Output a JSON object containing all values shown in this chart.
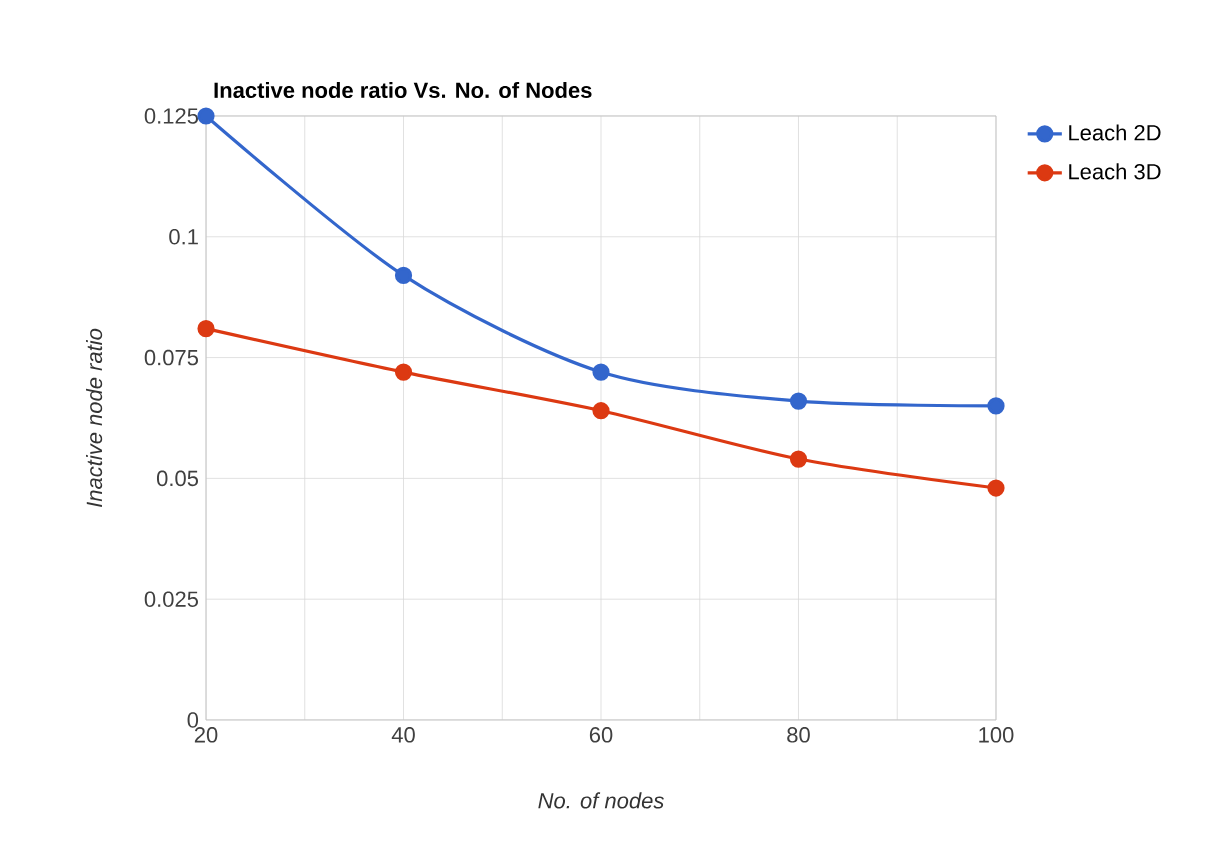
{
  "chart_data": {
    "type": "line",
    "title": "Inactive node ratio Vs. No. of Nodes",
    "xlabel": "No. of nodes",
    "ylabel": "Inactive node ratio",
    "x": [
      20,
      40,
      60,
      80,
      100
    ],
    "series": [
      {
        "name": "Leach 2D",
        "color": "#3366cc",
        "values": [
          0.125,
          0.092,
          0.072,
          0.066,
          0.065
        ]
      },
      {
        "name": "Leach 3D",
        "color": "#dc3912",
        "values": [
          0.081,
          0.072,
          0.064,
          0.054,
          0.048
        ]
      }
    ],
    "xlim": [
      20,
      100
    ],
    "ylim": [
      0,
      0.125
    ],
    "xticks": [
      20,
      {
        "value": 30,
        "label": null
      },
      40,
      {
        "value": 50,
        "label": null
      },
      60,
      {
        "value": 70,
        "label": null
      },
      80,
      {
        "value": 90,
        "label": null
      },
      100
    ],
    "yticks": [
      0,
      0.025,
      0.05,
      0.075,
      0.1,
      0.125
    ],
    "grid": true,
    "legend": "right",
    "marker": "circle",
    "line_style": "solid"
  }
}
